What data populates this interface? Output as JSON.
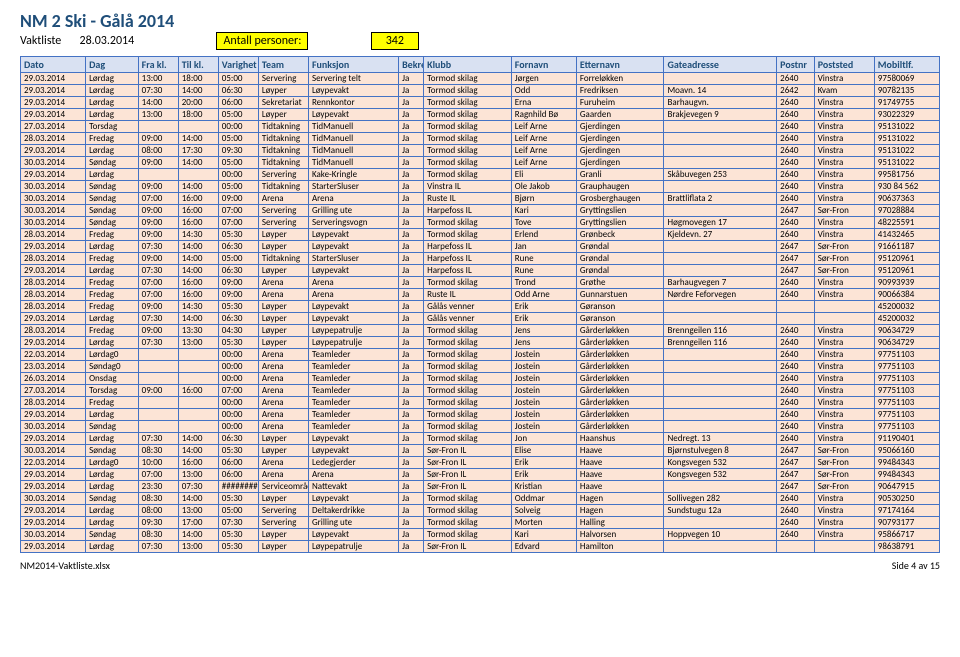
{
  "header": {
    "title": "NM 2 Ski - Gålå 2014",
    "vaktliste": "Vaktliste",
    "date": "28.03.2014",
    "antall_label": "Antall personer:",
    "antall_value": "342"
  },
  "columns": [
    "Dato",
    "Dag",
    "Fra kl.",
    "Til kl.",
    "Varighet",
    "Team",
    "Funksjon",
    "Bekreftet",
    "Klubb",
    "Fornavn",
    "Etternavn",
    "Gateadresse",
    "Postnr",
    "Poststed",
    "Mobiltlf."
  ],
  "rows": [
    [
      "29.03.2014",
      "Lørdag",
      "13:00",
      "18:00",
      "05:00",
      "Servering",
      "Servering telt",
      "Ja",
      "Tormod skilag",
      "Jørgen",
      "Forreløkken",
      "",
      "2640",
      "Vinstra",
      "97580069"
    ],
    [
      "29.03.2014",
      "Lørdag",
      "07:30",
      "14:00",
      "06:30",
      "Løyper",
      "Løypevakt",
      "Ja",
      "Tormod skilag",
      "Odd",
      "Fredriksen",
      "Moavn. 14",
      "2642",
      "Kvam",
      "90782135"
    ],
    [
      "29.03.2014",
      "Lørdag",
      "14:00",
      "20:00",
      "06:00",
      "Sekretariat",
      "Rennkontor",
      "Ja",
      "Tormod skilag",
      "Erna",
      "Furuheim",
      "Barhaugvn.",
      "2640",
      "Vinstra",
      "91749755"
    ],
    [
      "29.03.2014",
      "Lørdag",
      "13:00",
      "18:00",
      "05:00",
      "Løyper",
      "Løypevakt",
      "Ja",
      "Tormod skilag",
      "Ragnhild Bø",
      "Gaarden",
      "Brakjevegen 9",
      "2640",
      "Vinstra",
      "93022329"
    ],
    [
      "27.03.2014",
      "Torsdag",
      "",
      "",
      "00:00",
      "Tidtakning",
      "TidManuell",
      "Ja",
      "Tormod skilag",
      "Leif Arne",
      "Gjerdingen",
      "",
      "2640",
      "Vinstra",
      "95131022"
    ],
    [
      "28.03.2014",
      "Fredag",
      "09:00",
      "14:00",
      "05:00",
      "Tidtakning",
      "TidManuell",
      "Ja",
      "Tormod skilag",
      "Leif Arne",
      "Gjerdingen",
      "",
      "2640",
      "Vinstra",
      "95131022"
    ],
    [
      "29.03.2014",
      "Lørdag",
      "08:00",
      "17:30",
      "09:30",
      "Tidtakning",
      "TidManuell",
      "Ja",
      "Tormod skilag",
      "Leif Arne",
      "Gjerdingen",
      "",
      "2640",
      "Vinstra",
      "95131022"
    ],
    [
      "30.03.2014",
      "Søndag",
      "09:00",
      "14:00",
      "05:00",
      "Tidtakning",
      "TidManuell",
      "Ja",
      "Tormod skilag",
      "Leif Arne",
      "Gjerdingen",
      "",
      "2640",
      "Vinstra",
      "95131022"
    ],
    [
      "29.03.2014",
      "Lørdag",
      "",
      "",
      "00:00",
      "Servering",
      "Kake-Kringle",
      "Ja",
      "Tormod skilag",
      "Eli",
      "Granli",
      "Skåbuvegen 253",
      "2640",
      "Vinstra",
      "99581756"
    ],
    [
      "30.03.2014",
      "Søndag",
      "09:00",
      "14:00",
      "05:00",
      "Tidtakning",
      "StarterSluser",
      "Ja",
      "Vinstra IL",
      "Ole Jakob",
      "Grauphaugen",
      "",
      "2640",
      "Vinstra",
      "930 84 562"
    ],
    [
      "30.03.2014",
      "Søndag",
      "07:00",
      "16:00",
      "09:00",
      "Arena",
      "Arena",
      "Ja",
      "Ruste IL",
      "Bjørn",
      "Grosberghaugen",
      "Brattliflata 2",
      "2640",
      "Vinstra",
      "90637363"
    ],
    [
      "30.03.2014",
      "Søndag",
      "09:00",
      "16:00",
      "07:00",
      "Servering",
      "Grilling ute",
      "Ja",
      "Harpefoss IL",
      "Kari",
      "Gryttingslien",
      "",
      "2647",
      "Sør-Fron",
      "97028884"
    ],
    [
      "30.03.2014",
      "Søndag",
      "09:00",
      "16:00",
      "07:00",
      "Servering",
      "Serveringsvogn",
      "Ja",
      "Tormod skilag",
      "Tove",
      "Gryttingslien",
      "Høgmovegen 17",
      "2640",
      "Vinstra",
      "48225591"
    ],
    [
      "28.03.2014",
      "Fredag",
      "09:00",
      "14:30",
      "05:30",
      "Løyper",
      "Løypevakt",
      "Ja",
      "Tormod skilag",
      "Erlend",
      "Grønbeck",
      "Kjeldevn. 27",
      "2640",
      "Vinstra",
      "41432465"
    ],
    [
      "29.03.2014",
      "Lørdag",
      "07:30",
      "14:00",
      "06:30",
      "Løyper",
      "Løypevakt",
      "Ja",
      "Harpefoss IL",
      "Jan",
      "Grøndal",
      "",
      "2647",
      "Sør-Fron",
      "91661187"
    ],
    [
      "28.03.2014",
      "Fredag",
      "09:00",
      "14:00",
      "05:00",
      "Tidtakning",
      "StarterSluser",
      "Ja",
      "Harpefoss IL",
      "Rune",
      "Grøndal",
      "",
      "2647",
      "Sør-Fron",
      "95120961"
    ],
    [
      "29.03.2014",
      "Lørdag",
      "07:30",
      "14:00",
      "06:30",
      "Løyper",
      "Løypevakt",
      "Ja",
      "Harpefoss IL",
      "Rune",
      "Grøndal",
      "",
      "2647",
      "Sør-Fron",
      "95120961"
    ],
    [
      "28.03.2014",
      "Fredag",
      "07:00",
      "16:00",
      "09:00",
      "Arena",
      "Arena",
      "Ja",
      "Tormod skilag",
      "Trond",
      "Grøthe",
      "Barhaugvegen 7",
      "2640",
      "Vinstra",
      "90993939"
    ],
    [
      "28.03.2014",
      "Fredag",
      "07:00",
      "16:00",
      "09:00",
      "Arena",
      "Arena",
      "Ja",
      "Ruste IL",
      "Odd Arne",
      "Gunnarstuen",
      "Nørdre Feforvegen",
      "2640",
      "Vinstra",
      "90066384"
    ],
    [
      "28.03.2014",
      "Fredag",
      "09:00",
      "14:30",
      "05:30",
      "Løyper",
      "Løypevakt",
      "Ja",
      "Gålås venner",
      "Erik",
      "Gøranson",
      "",
      "",
      "",
      "45200032"
    ],
    [
      "29.03.2014",
      "Lørdag",
      "07:30",
      "14:00",
      "06:30",
      "Løyper",
      "Løypevakt",
      "Ja",
      "Gålås venner",
      "Erik",
      "Gøranson",
      "",
      "",
      "",
      "45200032"
    ],
    [
      "28.03.2014",
      "Fredag",
      "09:00",
      "13:30",
      "04:30",
      "Løyper",
      "Løypepatrulje",
      "Ja",
      "Tormod skilag",
      "Jens",
      "Gårderløkken",
      "Brenngeilen 116",
      "2640",
      "Vinstra",
      "90634729"
    ],
    [
      "29.03.2014",
      "Lørdag",
      "07:30",
      "13:00",
      "05:30",
      "Løyper",
      "Løypepatrulje",
      "Ja",
      "Tormod skilag",
      "Jens",
      "Gårderløkken",
      "Brenngeilen 116",
      "2640",
      "Vinstra",
      "90634729"
    ],
    [
      "22.03.2014",
      "Lørdag0",
      "",
      "",
      "00:00",
      "Arena",
      "Teamleder",
      "Ja",
      "Tormod skilag",
      "Jostein",
      "Gårderløkken",
      "",
      "2640",
      "Vinstra",
      "97751103"
    ],
    [
      "23.03.2014",
      "Søndag0",
      "",
      "",
      "00:00",
      "Arena",
      "Teamleder",
      "Ja",
      "Tormod skilag",
      "Jostein",
      "Gårderløkken",
      "",
      "2640",
      "Vinstra",
      "97751103"
    ],
    [
      "26.03.2014",
      "Onsdag",
      "",
      "",
      "00:00",
      "Arena",
      "Teamleder",
      "Ja",
      "Tormod skilag",
      "Jostein",
      "Gårderløkken",
      "",
      "2640",
      "Vinstra",
      "97751103"
    ],
    [
      "27.03.2014",
      "Torsdag",
      "09:00",
      "16:00",
      "07:00",
      "Arena",
      "Teamleder",
      "Ja",
      "Tormod skilag",
      "Jostein",
      "Gårderløkken",
      "",
      "2640",
      "Vinstra",
      "97751103"
    ],
    [
      "28.03.2014",
      "Fredag",
      "",
      "",
      "00:00",
      "Arena",
      "Teamleder",
      "Ja",
      "Tormod skilag",
      "Jostein",
      "Gårderløkken",
      "",
      "2640",
      "Vinstra",
      "97751103"
    ],
    [
      "29.03.2014",
      "Lørdag",
      "",
      "",
      "00:00",
      "Arena",
      "Teamleder",
      "Ja",
      "Tormod skilag",
      "Jostein",
      "Gårderløkken",
      "",
      "2640",
      "Vinstra",
      "97751103"
    ],
    [
      "30.03.2014",
      "Søndag",
      "",
      "",
      "00:00",
      "Arena",
      "Teamleder",
      "Ja",
      "Tormod skilag",
      "Jostein",
      "Gårderløkken",
      "",
      "2640",
      "Vinstra",
      "97751103"
    ],
    [
      "29.03.2014",
      "Lørdag",
      "07:30",
      "14:00",
      "06:30",
      "Løyper",
      "Løypevakt",
      "Ja",
      "Tormod skilag",
      "Jon",
      "Haanshus",
      "Nedregt. 13",
      "2640",
      "Vinstra",
      "91190401"
    ],
    [
      "30.03.2014",
      "Søndag",
      "08:30",
      "14:00",
      "05:30",
      "Løyper",
      "Løypevakt",
      "Ja",
      "Sør-Fron IL",
      "Elise",
      "Haave",
      "Bjørnstulvegen 8",
      "2647",
      "Sør-Fron",
      "95066160"
    ],
    [
      "22.03.2014",
      "Lørdag0",
      "10:00",
      "16:00",
      "06:00",
      "Arena",
      "Ledegjerder",
      "Ja",
      "Sør-Fron IL",
      "Erik",
      "Haave",
      "Kongsvegen 532",
      "2647",
      "Sør-Fron",
      "99484343"
    ],
    [
      "29.03.2014",
      "Lørdag",
      "07:00",
      "13:00",
      "06:00",
      "Arena",
      "Arena",
      "Ja",
      "Sør-Fron IL",
      "Erik",
      "Haave",
      "Kongsvegen 532",
      "2647",
      "Sør-Fron",
      "99484343"
    ],
    [
      "29.03.2014",
      "Lørdag",
      "23:30",
      "07:30",
      "########",
      "Serviceområde",
      "Nattevakt",
      "Ja",
      "Sør-Fron IL",
      "Kristian",
      "Haave",
      "",
      "2647",
      "Sør-Fron",
      "90647915"
    ],
    [
      "30.03.2014",
      "Søndag",
      "08:30",
      "14:00",
      "05:30",
      "Løyper",
      "Løypevakt",
      "Ja",
      "Tormod skilag",
      "Oddmar",
      "Hagen",
      "Sollivegen 282",
      "2640",
      "Vinstra",
      "90530250"
    ],
    [
      "29.03.2014",
      "Lørdag",
      "08:00",
      "13:00",
      "05:00",
      "Servering",
      "Deltakerdrikke",
      "Ja",
      "Tormod skilag",
      "Solveig",
      "Hagen",
      "Sundstugu 12a",
      "2640",
      "Vinstra",
      "97174164"
    ],
    [
      "29.03.2014",
      "Lørdag",
      "09:30",
      "17:00",
      "07:30",
      "Servering",
      "Grilling ute",
      "Ja",
      "Tormod skilag",
      "Morten",
      "Halling",
      "",
      "2640",
      "Vinstra",
      "90793177"
    ],
    [
      "30.03.2014",
      "Søndag",
      "08:30",
      "14:00",
      "05:30",
      "Løyper",
      "Løypevakt",
      "Ja",
      "Tormod skilag",
      "Kari",
      "Halvorsen",
      "Hoppvegen 10",
      "2640",
      "Vinstra",
      "95866717"
    ],
    [
      "29.03.2014",
      "Lørdag",
      "07:30",
      "13:00",
      "05:30",
      "Løyper",
      "Løypepatrulje",
      "Ja",
      "Sør-Fron IL",
      "Edvard",
      "Hamilton",
      "",
      "",
      "",
      "98638791"
    ]
  ],
  "footer": {
    "file": "NM2014-Vaktliste.xlsx",
    "page": "Side 4 av 15"
  }
}
